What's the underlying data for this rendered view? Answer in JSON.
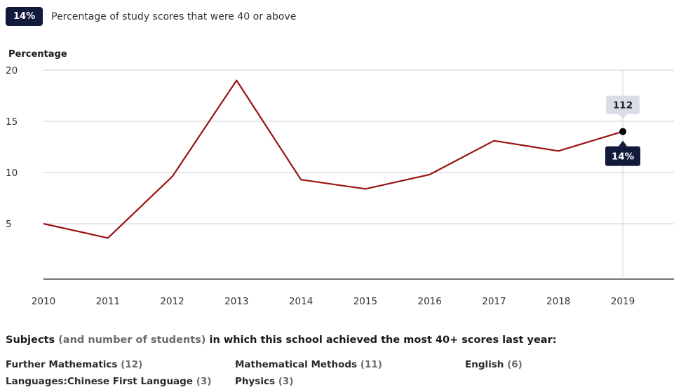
{
  "header": {
    "badge": "14%",
    "description": "Percentage of study scores that were 40 or above"
  },
  "chart_data": {
    "type": "line",
    "ylabel": "Percentage",
    "x": [
      "2010",
      "2011",
      "2012",
      "2013",
      "2014",
      "2015",
      "2016",
      "2017",
      "2018",
      "2019"
    ],
    "series": [
      {
        "values": [
          5,
          3.6,
          9.6,
          19,
          9.3,
          8.4,
          9.8,
          13.1,
          12.1,
          14
        ]
      }
    ],
    "yticks": [
      5,
      10,
      15,
      20
    ],
    "ylim": [
      0,
      20
    ],
    "grid": true,
    "line_color": "#9b1212",
    "highlight": {
      "x": "2019",
      "value_label": "14%",
      "count_label": "112"
    }
  },
  "subjects": {
    "title_start": "Subjects",
    "title_muted": "(and number of students)",
    "title_end": "in which this school achieved the most 40+ scores last year:",
    "items": [
      {
        "name": "Further Mathematics",
        "count": "(12)"
      },
      {
        "name": "Mathematical Methods",
        "count": "(11)"
      },
      {
        "name": "English",
        "count": "(6)"
      },
      {
        "name": "Languages:Chinese First Language",
        "count": "(3)"
      },
      {
        "name": "Physics",
        "count": "(3)"
      }
    ]
  }
}
